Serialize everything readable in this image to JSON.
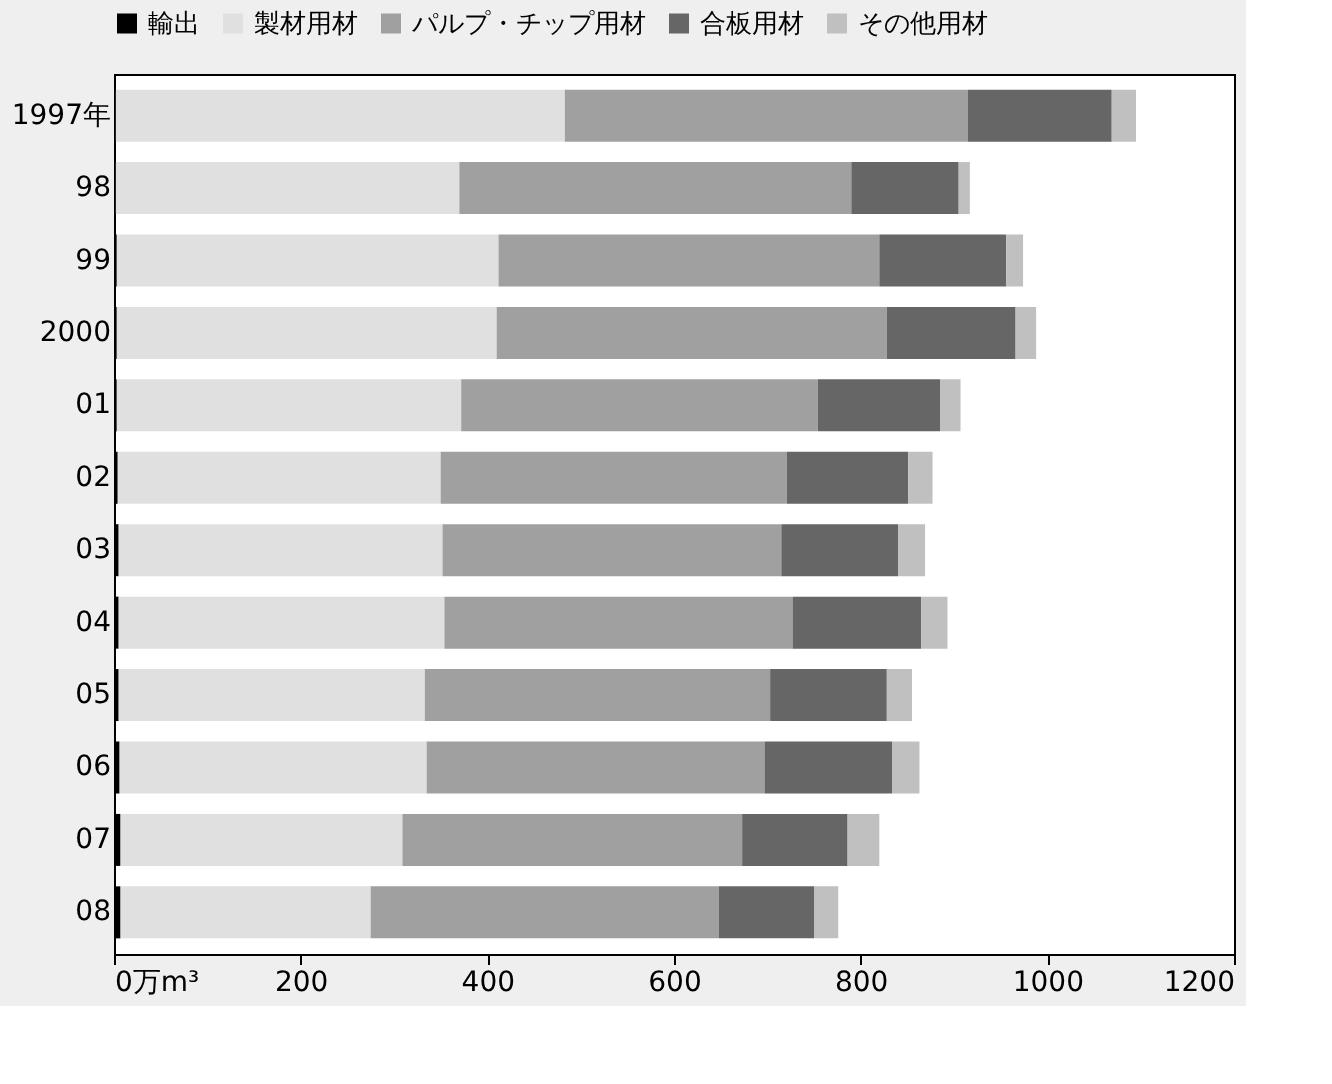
{
  "chart_data": {
    "type": "bar",
    "orientation": "horizontal",
    "stacked": true,
    "categories": [
      "1997年",
      "98",
      "99",
      "2000",
      "01",
      "02",
      "03",
      "04",
      "05",
      "06",
      "07",
      "08"
    ],
    "series": [
      {
        "name": "輸出",
        "color": "#000000",
        "values": [
          2,
          2,
          3,
          3,
          3,
          4,
          5,
          5,
          5,
          6,
          7,
          7
        ]
      },
      {
        "name": "製材用材",
        "color": "#e0e0e0",
        "values": [
          481,
          368,
          409,
          407,
          369,
          346,
          347,
          349,
          328,
          329,
          302,
          268
        ]
      },
      {
        "name": "パルプ・チップ用材",
        "color": "#a0a0a0",
        "values": [
          432,
          420,
          408,
          418,
          382,
          371,
          363,
          373,
          370,
          362,
          364,
          373
        ]
      },
      {
        "name": "合板用材",
        "color": "#666666",
        "values": [
          154,
          115,
          136,
          138,
          131,
          130,
          125,
          138,
          125,
          137,
          113,
          102
        ]
      },
      {
        "name": "その他用材",
        "color": "#c0c0c0",
        "values": [
          26,
          12,
          18,
          22,
          22,
          26,
          29,
          28,
          27,
          29,
          34,
          26
        ]
      }
    ],
    "xlim": [
      0,
      1200
    ],
    "xticks": [
      {
        "value": 0,
        "label": "0万m³"
      },
      200,
      400,
      600,
      800,
      1000,
      1200
    ],
    "legend": "top",
    "grid": false
  }
}
